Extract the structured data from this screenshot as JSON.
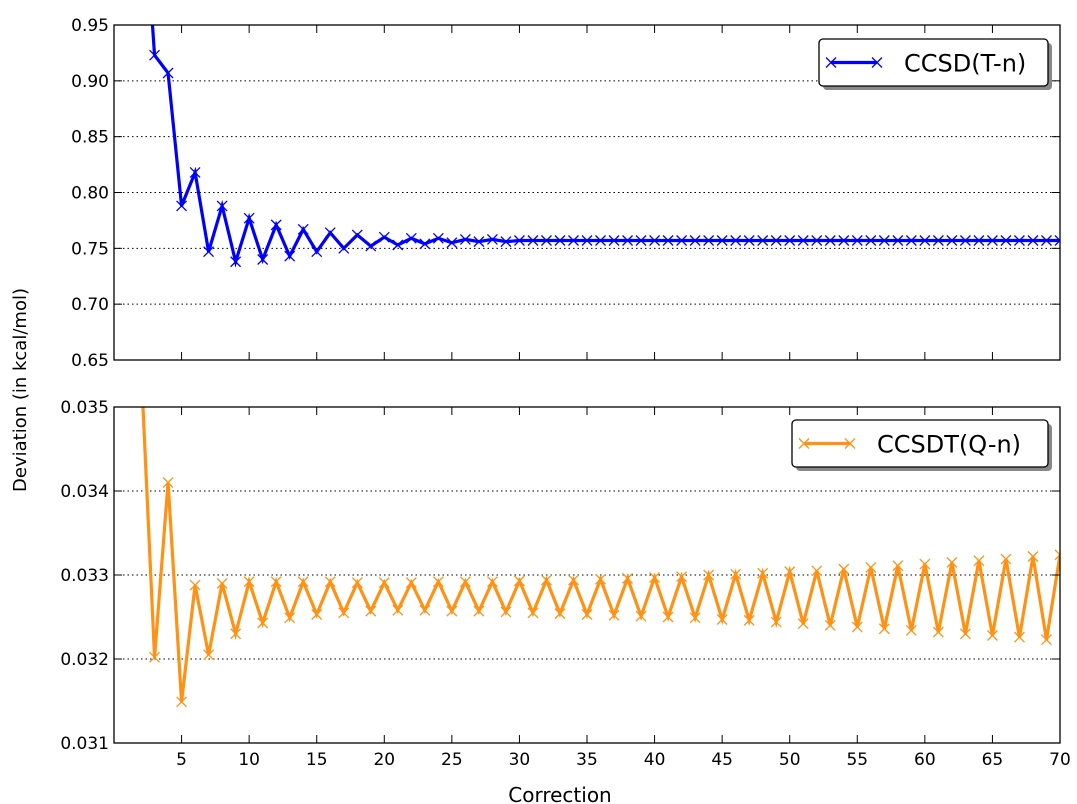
{
  "figure": {
    "ylabel": "Deviation (in kcal/mol)",
    "xlabel": "Correction"
  },
  "chart_data": [
    {
      "type": "line",
      "xlabel": "Correction",
      "ylabel": "Deviation (in kcal/mol)",
      "xlim": [
        0,
        70
      ],
      "ylim": [
        0.65,
        0.95
      ],
      "x_ticks": [
        5,
        10,
        15,
        20,
        25,
        30,
        35,
        40,
        45,
        50,
        55,
        60,
        65,
        70
      ],
      "y_ticks": [
        0.65,
        0.7,
        0.75,
        0.8,
        0.85,
        0.9,
        0.95
      ],
      "y_tick_labels": [
        "0.65",
        "0.70",
        "0.75",
        "0.80",
        "0.85",
        "0.90",
        "0.95"
      ],
      "grid": "horizontal-dotted",
      "legend_position": "top-right",
      "series": [
        {
          "name": "CCSD(T-n)",
          "color": "#0000ff",
          "marker": "x",
          "x": [
            2,
            3,
            4,
            5,
            6,
            7,
            8,
            9,
            10,
            11,
            12,
            13,
            14,
            15,
            16,
            17,
            18,
            19,
            20,
            21,
            22,
            23,
            24,
            25,
            26,
            27,
            28,
            29,
            30,
            31,
            32,
            33,
            34,
            35,
            36,
            37,
            38,
            39,
            40,
            41,
            42,
            43,
            44,
            45,
            46,
            47,
            48,
            49,
            50,
            51,
            52,
            53,
            54,
            55,
            56,
            57,
            58,
            59,
            60,
            61,
            62,
            63,
            64,
            65,
            66,
            67,
            68,
            69,
            70
          ],
          "values": [
            1.1,
            0.923,
            0.907,
            0.788,
            0.818,
            0.747,
            0.788,
            0.738,
            0.777,
            0.74,
            0.771,
            0.743,
            0.767,
            0.747,
            0.764,
            0.75,
            0.762,
            0.752,
            0.76,
            0.753,
            0.759,
            0.754,
            0.759,
            0.755,
            0.758,
            0.756,
            0.758,
            0.756,
            0.757,
            0.757,
            0.757,
            0.757,
            0.757,
            0.757,
            0.757,
            0.757,
            0.757,
            0.757,
            0.757,
            0.757,
            0.757,
            0.757,
            0.757,
            0.757,
            0.757,
            0.757,
            0.757,
            0.757,
            0.757,
            0.757,
            0.757,
            0.757,
            0.757,
            0.757,
            0.757,
            0.757,
            0.757,
            0.757,
            0.757,
            0.757,
            0.757,
            0.757,
            0.757,
            0.757,
            0.757,
            0.757,
            0.757,
            0.757,
            0.757
          ]
        }
      ]
    },
    {
      "type": "line",
      "xlabel": "Correction",
      "ylabel": "Deviation (in kcal/mol)",
      "xlim": [
        0,
        70
      ],
      "ylim": [
        0.031,
        0.035
      ],
      "x_ticks": [
        5,
        10,
        15,
        20,
        25,
        30,
        35,
        40,
        45,
        50,
        55,
        60,
        65,
        70
      ],
      "x_tick_labels": [
        "5",
        "10",
        "15",
        "20",
        "25",
        "30",
        "35",
        "40",
        "45",
        "50",
        "55",
        "60",
        "65",
        "70"
      ],
      "y_ticks": [
        0.031,
        0.032,
        0.033,
        0.034,
        0.035
      ],
      "y_tick_labels": [
        "0.031",
        "0.032",
        "0.033",
        "0.034",
        "0.035"
      ],
      "grid": "horizontal-dotted",
      "legend_position": "top-right",
      "series": [
        {
          "name": "CCSDT(Q-n)",
          "color": "#ff9214",
          "marker": "x",
          "x": [
            2,
            3,
            4,
            5,
            6,
            7,
            8,
            9,
            10,
            11,
            12,
            13,
            14,
            15,
            16,
            17,
            18,
            19,
            20,
            21,
            22,
            23,
            24,
            25,
            26,
            27,
            28,
            29,
            30,
            31,
            32,
            33,
            34,
            35,
            36,
            37,
            38,
            39,
            40,
            41,
            42,
            43,
            44,
            45,
            46,
            47,
            48,
            49,
            50,
            51,
            52,
            53,
            54,
            55,
            56,
            57,
            58,
            59,
            60,
            61,
            62,
            63,
            64,
            65,
            66,
            67,
            68,
            69,
            70
          ],
          "values": [
            0.0355,
            0.03202,
            0.0341,
            0.03149,
            0.03288,
            0.03205,
            0.0329,
            0.0323,
            0.03292,
            0.03243,
            0.03292,
            0.03249,
            0.03292,
            0.03253,
            0.03292,
            0.03255,
            0.03291,
            0.03257,
            0.03291,
            0.03258,
            0.03291,
            0.03258,
            0.03292,
            0.03257,
            0.03292,
            0.03257,
            0.03292,
            0.03256,
            0.03293,
            0.03255,
            0.03294,
            0.03254,
            0.03294,
            0.03253,
            0.03295,
            0.03252,
            0.03296,
            0.03251,
            0.03297,
            0.0325,
            0.03298,
            0.03249,
            0.033,
            0.03247,
            0.03301,
            0.03246,
            0.03302,
            0.03244,
            0.03304,
            0.03242,
            0.03305,
            0.0324,
            0.03307,
            0.03238,
            0.03309,
            0.03236,
            0.03311,
            0.03234,
            0.03313,
            0.03232,
            0.03315,
            0.0323,
            0.03317,
            0.03228,
            0.03319,
            0.03226,
            0.03322,
            0.03223,
            0.03324
          ]
        }
      ]
    }
  ]
}
